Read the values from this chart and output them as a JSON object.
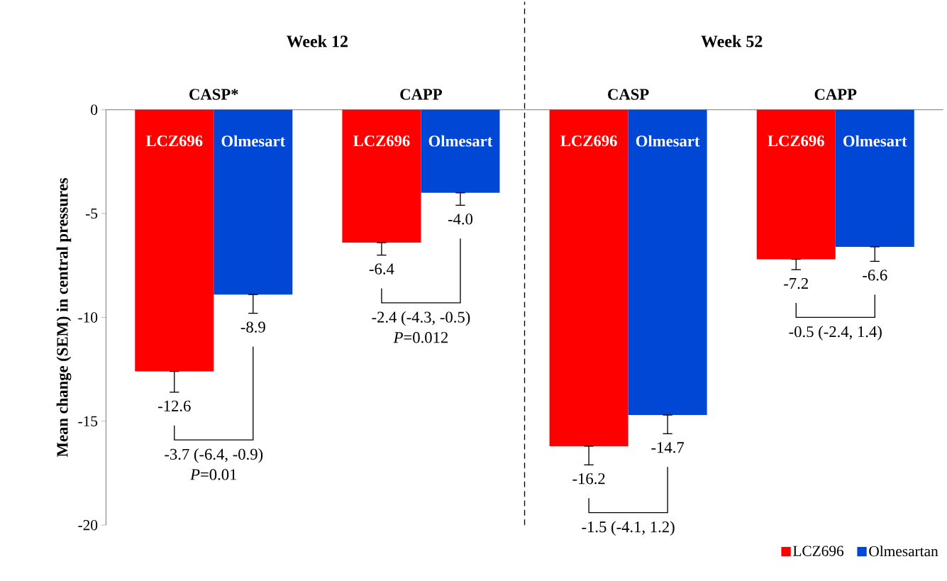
{
  "chart_data": {
    "type": "bar",
    "ylabel": "Mean change (SEM) in central pressures",
    "categories": [
      "CASP*",
      "CAPP",
      "CASP",
      "CAPP"
    ],
    "series": [
      {
        "name": "LCZ696",
        "color": "#ff0000",
        "values": [
          -12.6,
          -6.4,
          -16.2,
          -7.2
        ],
        "errors": [
          [
            -13.6,
            -12.6
          ],
          [
            -7.0,
            -6.4
          ],
          [
            -17.1,
            -16.2
          ],
          [
            -7.7,
            -7.2
          ]
        ],
        "value_labels": [
          "-12.6",
          "-6.4",
          "-16.2",
          "-7.2"
        ]
      },
      {
        "name": "Olmesartan",
        "color": "#0047d6",
        "values": [
          -8.9,
          -4.0,
          -14.7,
          -6.6
        ],
        "errors": [
          [
            -9.8,
            -8.9
          ],
          [
            -4.6,
            -4.0
          ],
          [
            -15.6,
            -14.7
          ],
          [
            -7.3,
            -6.6
          ]
        ],
        "value_labels": [
          "-8.9",
          "-4.0",
          "-14.7",
          "-6.6"
        ]
      }
    ],
    "ylim": [
      -20,
      0
    ],
    "yticks": [
      -20,
      -15,
      -10,
      -5,
      0
    ],
    "annotations": [
      "Week 12",
      "Week 52",
      "LCZ696",
      "Olmesart",
      "LCZ696",
      "Olmesart",
      "LCZ696",
      "Olmesart",
      "LCZ696",
      "Olmesart",
      "-3.7 (-6.4, -0.9)",
      "*P*=0.01",
      "-2.4 (-4.3, -0.5)",
      "*P*=0.012",
      "-1.5 (-4.1, 1.2)",
      "-0.5 (-2.4, 1.4)"
    ],
    "legend": "bottom right",
    "grid": false
  }
}
